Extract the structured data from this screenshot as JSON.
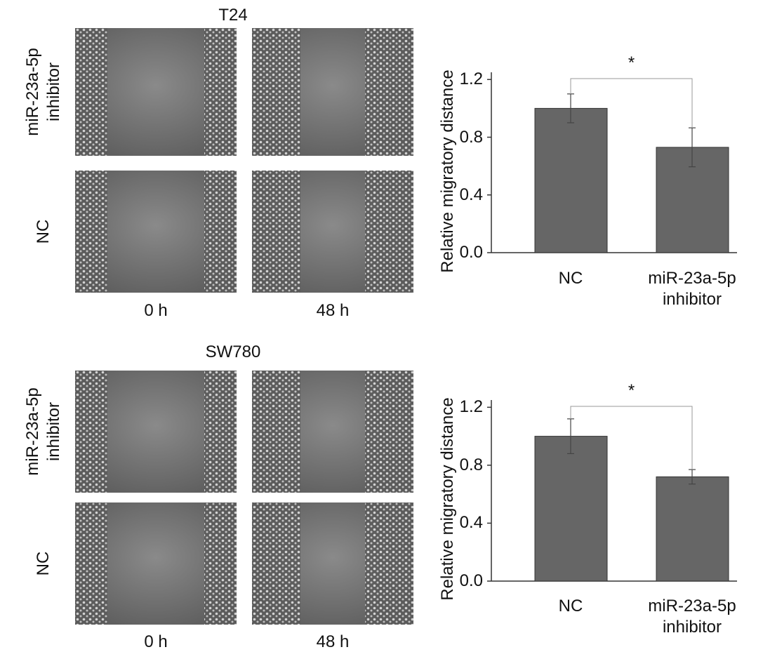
{
  "panels": [
    {
      "title": "T24",
      "rows": [
        "miR-23a-5p inhibitor",
        "NC"
      ],
      "columns": [
        "0 h",
        "48 h"
      ]
    },
    {
      "title": "SW780",
      "rows": [
        "miR-23a-5p inhibitor",
        "NC"
      ],
      "columns": [
        "0 h",
        "48 h"
      ]
    }
  ],
  "chart_data": [
    {
      "type": "bar",
      "y_label": "Relative migratory distance",
      "categories": [
        "NC",
        "miR-23a-5p inhibitor"
      ],
      "values": [
        1.0,
        0.73
      ],
      "errors": [
        0.1,
        0.135
      ],
      "color": "#666666",
      "annotation": "*",
      "ylim": [
        0,
        1.25
      ],
      "yticks": [
        {
          "value": 0,
          "label": "0.0"
        },
        0.4,
        0.8,
        1.2
      ]
    },
    {
      "type": "bar",
      "y_label": "Relative migratory distance",
      "categories": [
        "NC",
        "miR-23a-5p inhibitor"
      ],
      "values": [
        1.0,
        0.72
      ],
      "errors": [
        0.12,
        0.05
      ],
      "color": "#666666",
      "annotation": "*",
      "ylim": [
        0,
        1.25
      ],
      "yticks": [
        {
          "value": 0,
          "label": "0.0"
        },
        0.4,
        0.8,
        1.2
      ]
    }
  ]
}
